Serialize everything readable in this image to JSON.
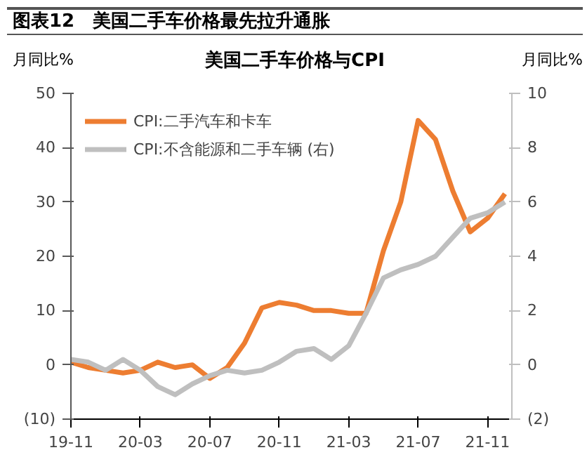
{
  "chart_data": {
    "type": "line",
    "title": "美国二手车价格与CPI",
    "subtitle": "图表12　美国二手车价格最先拉升通胀",
    "ylabel": "月同比%",
    "y2label": "月同比%",
    "categories": [
      "19-11",
      null,
      null,
      null,
      "20-03",
      null,
      null,
      null,
      "20-07",
      null,
      null,
      null,
      "20-11",
      null,
      null,
      null,
      "21-03",
      null,
      null,
      null,
      "21-07",
      null,
      null,
      null,
      "21-11",
      null
    ],
    "series": [
      {
        "name": "CPI:二手汽车和卡车",
        "color": "#ed7d31",
        "values": [
          0.5,
          -0.5,
          -1,
          -1.5,
          -1,
          0.5,
          -0.5,
          0,
          -2.5,
          -0.5,
          4,
          10.5,
          11.5,
          11,
          10,
          10,
          9.5,
          9.5,
          21,
          30,
          45,
          41.5,
          32,
          24.5,
          27,
          31.5
        ]
      },
      {
        "name": "CPI:不含能源和二手车辆 (右)",
        "color": "#bfbfbf",
        "axis": "y2",
        "values": [
          0.2,
          0.1,
          -0.2,
          0.2,
          -0.2,
          -0.8,
          -1.1,
          -0.7,
          -0.4,
          -0.2,
          -0.3,
          -0.2,
          0.1,
          0.5,
          0.6,
          0.2,
          0.7,
          1.9,
          3.2,
          3.5,
          3.7,
          4.0,
          4.7,
          5.4,
          5.6,
          6.0
        ]
      }
    ],
    "ylim": [
      -10,
      50
    ],
    "yticks": [
      {
        "value": -10,
        "label": "(10)"
      },
      0,
      10,
      20,
      30,
      40,
      50
    ],
    "y2lim": [
      -2,
      10
    ],
    "y2ticks": [
      {
        "value": -2,
        "label": "(2)"
      },
      0,
      2,
      4,
      6,
      8,
      10
    ],
    "legend": "top left",
    "grid": false,
    "marker": "none",
    "line_style": "solid"
  }
}
